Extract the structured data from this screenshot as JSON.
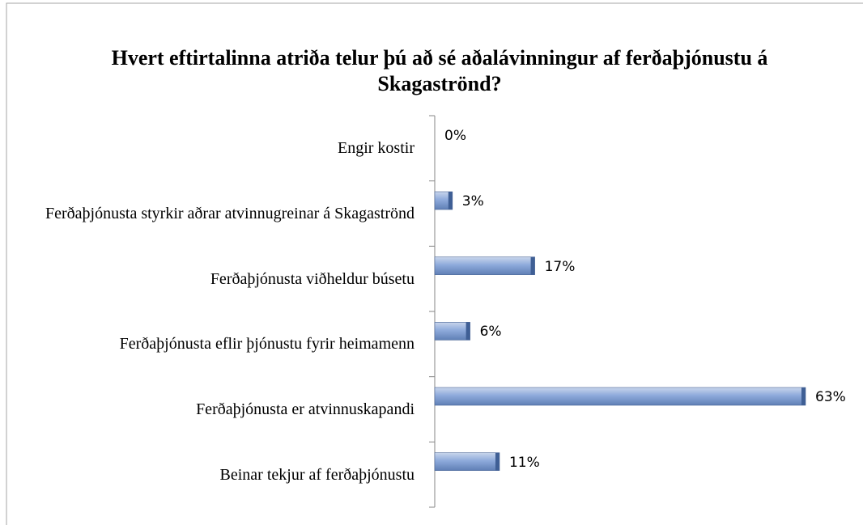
{
  "chart_data": {
    "type": "bar",
    "orientation": "horizontal",
    "title": "Hvert eftirtalinna atriða telur þú að sé aðalávinningur af ferðaþjónustu á Skagaströnd?",
    "categories": [
      "Engir kostir",
      "Ferðaþjónusta styrkir aðrar atvinnugreinar á Skagaströnd",
      "Ferðaþjónusta viðheldur búsetu",
      "Ferðaþjónusta eflir þjónustu fyrir heimamenn",
      "Ferðaþjónusta er atvinnuskapandi",
      "Beinar tekjur af ferðaþjónustu"
    ],
    "values": [
      0,
      3,
      17,
      6,
      63,
      11
    ],
    "value_labels": [
      "0%",
      "3%",
      "17%",
      "6%",
      "63%",
      "11%"
    ],
    "color": "#8eaadb"
  }
}
